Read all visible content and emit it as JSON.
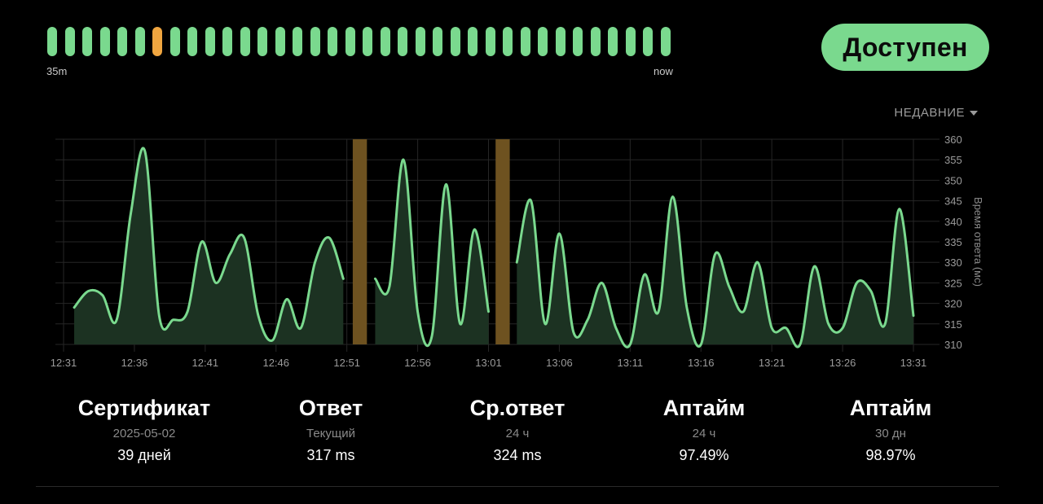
{
  "heartbeats": {
    "states": [
      "up",
      "up",
      "up",
      "up",
      "up",
      "up",
      "warn",
      "up",
      "up",
      "up",
      "up",
      "up",
      "up",
      "up",
      "up",
      "up",
      "up",
      "up",
      "up",
      "up",
      "up",
      "up",
      "up",
      "up",
      "up",
      "up",
      "up",
      "up",
      "up",
      "up",
      "up",
      "up",
      "up",
      "up",
      "up",
      "up"
    ],
    "start_label": "35m",
    "end_label": "now"
  },
  "status": {
    "label": "Доступен",
    "color": "#7ad98e"
  },
  "period": {
    "label": "НЕДАВНИЕ"
  },
  "chart_data": {
    "type": "area",
    "ylabel": "Время ответа (мс)",
    "ylim": [
      310,
      360
    ],
    "yticks": [
      310,
      315,
      320,
      325,
      330,
      335,
      340,
      345,
      350,
      355,
      360
    ],
    "xlim": [
      "12:31",
      "13:31"
    ],
    "xtick_labels": [
      "12:31",
      "12:36",
      "12:41",
      "12:46",
      "12:51",
      "12:56",
      "13:01",
      "13:06",
      "13:11",
      "13:16",
      "13:21",
      "13:26",
      "13:31"
    ],
    "line_color": "#7ad98e",
    "fill_color": "#1c3222",
    "outage_color": "#6e5220",
    "outages": [
      {
        "from": "12:51:25",
        "to": "12:52:25"
      },
      {
        "from": "13:01:30",
        "to": "13:02:30"
      }
    ],
    "series": [
      {
        "points": [
          [
            "12:31:45",
            319
          ],
          [
            "12:32:45",
            323
          ],
          [
            "12:33:45",
            322
          ],
          [
            "12:34:45",
            316
          ],
          [
            "12:35:45",
            342
          ],
          [
            "12:36:45",
            357
          ],
          [
            "12:37:45",
            317
          ],
          [
            "12:38:45",
            316
          ],
          [
            "12:39:45",
            318
          ],
          [
            "12:40:45",
            335
          ],
          [
            "12:41:45",
            325
          ],
          [
            "12:42:45",
            332
          ],
          [
            "12:43:45",
            336
          ],
          [
            "12:44:45",
            317
          ],
          [
            "12:45:45",
            311
          ],
          [
            "12:46:45",
            321
          ],
          [
            "12:47:45",
            314
          ],
          [
            "12:48:45",
            330
          ],
          [
            "12:49:45",
            336
          ],
          [
            "12:50:45",
            326
          ]
        ]
      },
      {
        "points": [
          [
            "12:53:00",
            326
          ],
          [
            "12:54:00",
            324
          ],
          [
            "12:55:00",
            355
          ],
          [
            "12:56:00",
            318
          ],
          [
            "12:57:00",
            312
          ],
          [
            "12:58:00",
            349
          ],
          [
            "12:59:00",
            315
          ],
          [
            "13:00:00",
            338
          ],
          [
            "13:01:00",
            318
          ]
        ]
      },
      {
        "points": [
          [
            "13:03:00",
            330
          ],
          [
            "13:04:00",
            345
          ],
          [
            "13:05:00",
            315
          ],
          [
            "13:06:00",
            337
          ],
          [
            "13:07:00",
            313
          ],
          [
            "13:08:00",
            316
          ],
          [
            "13:09:00",
            325
          ],
          [
            "13:10:00",
            314
          ],
          [
            "13:11:00",
            310
          ],
          [
            "13:12:00",
            327
          ],
          [
            "13:13:00",
            318
          ],
          [
            "13:14:00",
            346
          ],
          [
            "13:15:00",
            319
          ],
          [
            "13:16:00",
            310
          ],
          [
            "13:17:00",
            332
          ],
          [
            "13:18:00",
            324
          ],
          [
            "13:19:00",
            318
          ],
          [
            "13:20:00",
            330
          ],
          [
            "13:21:00",
            314
          ],
          [
            "13:22:00",
            314
          ],
          [
            "13:23:00",
            310
          ],
          [
            "13:24:00",
            329
          ],
          [
            "13:25:00",
            315
          ],
          [
            "13:26:00",
            314
          ],
          [
            "13:27:00",
            325
          ],
          [
            "13:28:00",
            323
          ],
          [
            "13:29:00",
            315
          ],
          [
            "13:30:00",
            343
          ],
          [
            "13:31:00",
            317
          ]
        ]
      }
    ]
  },
  "stats": [
    {
      "title": "Сертификат",
      "subtitle": "2025-05-02",
      "value": "39 дней"
    },
    {
      "title": "Ответ",
      "subtitle": "Текущий",
      "value": "317 ms"
    },
    {
      "title": "Ср.ответ",
      "subtitle": "24 ч",
      "value": "324 ms"
    },
    {
      "title": "Аптайм",
      "subtitle": "24 ч",
      "value": "97.49%"
    },
    {
      "title": "Аптайм",
      "subtitle": "30 дн",
      "value": "98.97%"
    }
  ]
}
